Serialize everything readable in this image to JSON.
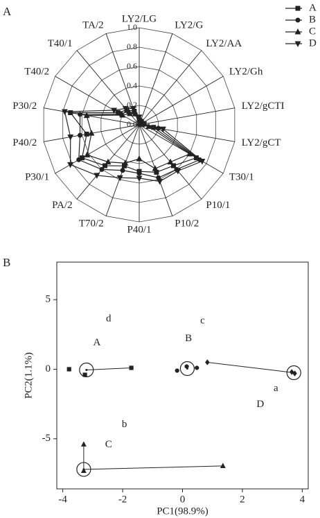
{
  "chart_data": [
    {
      "type": "radar",
      "panel": "A",
      "categories": [
        "LY2/LG",
        "LY2/G",
        "LY2/AA",
        "LY2/Gh",
        "LY2/gCTI",
        "LY2/gCT",
        "T30/1",
        "P10/1",
        "P10/2",
        "P40/1",
        "T70/2",
        "PA/2",
        "P30/1",
        "P40/2",
        "P30/2",
        "T40/2",
        "T40/1",
        "TA/2"
      ],
      "rlim": [
        0,
        1
      ],
      "rticks": [
        {
          "value": 0,
          "label": "0.0"
        },
        {
          "value": 0.2,
          "label": "0.2"
        },
        {
          "value": 0.4,
          "label": "0.4"
        },
        {
          "value": 0.6,
          "label": "0.6"
        },
        {
          "value": 0.8,
          "label": "0.8"
        },
        {
          "value": 1,
          "label": "1.0"
        }
      ],
      "series": [
        {
          "name": "A",
          "marker": "square",
          "color": "#222",
          "values": [
            0.05,
            0.03,
            0.02,
            0.02,
            0.05,
            0.15,
            0.68,
            0.55,
            0.52,
            0.48,
            0.45,
            0.55,
            0.68,
            0.55,
            0.72,
            0.25,
            0.2,
            0.15
          ]
        },
        {
          "name": "B",
          "marker": "circle",
          "color": "#222",
          "values": [
            0.04,
            0.03,
            0.02,
            0.02,
            0.04,
            0.2,
            0.72,
            0.6,
            0.58,
            0.5,
            0.5,
            0.6,
            0.72,
            0.62,
            0.62,
            0.22,
            0.18,
            0.12
          ]
        },
        {
          "name": "C",
          "marker": "triangle-up",
          "color": "#222",
          "values": [
            0.05,
            0.02,
            0.02,
            0.02,
            0.03,
            0.1,
            0.6,
            0.5,
            0.48,
            0.35,
            0.42,
            0.5,
            0.62,
            0.5,
            0.55,
            0.2,
            0.15,
            0.12
          ]
        },
        {
          "name": "D",
          "marker": "triangle-down",
          "color": "#222",
          "values": [
            0.08,
            0.04,
            0.03,
            0.03,
            0.05,
            0.25,
            0.75,
            0.62,
            0.62,
            0.55,
            0.58,
            0.68,
            0.82,
            0.72,
            0.78,
            0.3,
            0.22,
            0.18
          ]
        }
      ]
    },
    {
      "type": "scatter",
      "panel": "B",
      "x_label": "PC1(98.9%)",
      "y_label": "PC2(1.1%)",
      "xlim": [
        -4.2,
        4.2
      ],
      "ylim": [
        -8.6,
        7.7
      ],
      "xticks": [
        -4,
        -2,
        0,
        2,
        4
      ],
      "yticks": [
        -5,
        0,
        5
      ],
      "groups": [
        {
          "marker": "square",
          "x": [
            -3.79,
            -3.26,
            -1.71
          ],
          "y": [
            0,
            -0.4,
            0.1
          ],
          "center_x": -3.21,
          "center_y": -0.05,
          "links": [
            2
          ]
        },
        {
          "marker": "circle",
          "x": [
            -0.18,
            0.14,
            0.48
          ],
          "y": [
            -0.1,
            0.2,
            0.1
          ],
          "center_x": 0.16,
          "center_y": 0.05,
          "links": []
        },
        {
          "marker": "diamond",
          "x": [
            0.83,
            3.65,
            3.75
          ],
          "y": [
            0.5,
            -0.2,
            -0.3
          ],
          "center_x": 3.72,
          "center_y": -0.25,
          "links": [
            0
          ]
        },
        {
          "marker": "triangle-up",
          "x": [
            -3.3,
            -3.3,
            1.35
          ],
          "y": [
            -5.4,
            -7.3,
            -6.95
          ],
          "center_x": -3.3,
          "center_y": -7.2,
          "links": [
            0,
            2
          ]
        }
      ],
      "annotations": [
        {
          "text": "A",
          "x": -2.86,
          "y": 1.9
        },
        {
          "text": "B",
          "x": 0.2,
          "y": 2.2
        },
        {
          "text": "C",
          "x": -2.47,
          "y": -5.45
        },
        {
          "text": "D",
          "x": 2.6,
          "y": -2.55
        },
        {
          "text": "d",
          "x": -2.47,
          "y": 3.6
        },
        {
          "text": "c",
          "x": 0.67,
          "y": 3.45
        },
        {
          "text": "b",
          "x": -1.94,
          "y": -4
        },
        {
          "text": "a",
          "x": 3.12,
          "y": -1.4
        }
      ]
    }
  ]
}
